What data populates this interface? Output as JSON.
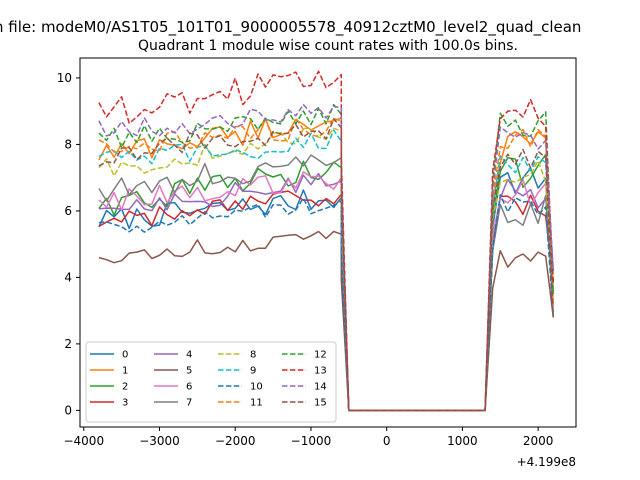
{
  "chart_data": {
    "type": "line",
    "title": "n file: modeM0/AS1T05_101T01_9000005578_40912cztM0_level2_quad_clean",
    "subtitle": "Quadrant 1 module wise count rates with 100.0s bins.",
    "xlabel": "",
    "ylabel": "",
    "x_offset_label": "+4.199e8",
    "xlim": [
      -4050,
      2500
    ],
    "ylim": [
      -0.5,
      10.6
    ],
    "x_ticks": [
      -4000,
      -3000,
      -2000,
      -1000,
      0,
      1000,
      2000
    ],
    "x_tick_labels": [
      "−4000",
      "−3000",
      "−2000",
      "−1000",
      "0",
      "1000",
      "2000"
    ],
    "y_ticks": [
      0,
      2,
      4,
      6,
      8,
      10
    ],
    "y_tick_labels": [
      "0",
      "2",
      "4",
      "6",
      "8",
      "10"
    ],
    "grid": false,
    "legend_position": "lower-left",
    "legend_columns": 4,
    "segment1": {
      "x_start": -3800,
      "step": 100,
      "count": 33
    },
    "gap": {
      "x": [
        -500,
        1300
      ],
      "y": 0
    },
    "segment2": {
      "x_start": 1400,
      "step": 100,
      "count": 9
    },
    "series": [
      {
        "name": "0",
        "color": "#1f77b4",
        "dashed": false,
        "base": 5.7,
        "amp": 0.35,
        "end": 6.4,
        "seg2": 6.9
      },
      {
        "name": "1",
        "color": "#ff7f0e",
        "dashed": false,
        "base": 7.7,
        "amp": 0.4,
        "end": 8.8,
        "seg2": 7.9
      },
      {
        "name": "2",
        "color": "#2ca02c",
        "dashed": false,
        "base": 6.2,
        "amp": 0.4,
        "end": 7.3,
        "seg2": 7.2
      },
      {
        "name": "3",
        "color": "#d62728",
        "dashed": false,
        "base": 5.6,
        "amp": 0.3,
        "end": 6.5,
        "seg2": 6.1
      },
      {
        "name": "4",
        "color": "#9467bd",
        "dashed": false,
        "base": 6.1,
        "amp": 0.35,
        "end": 6.9,
        "seg2": 6.5
      },
      {
        "name": "5",
        "color": "#8c564b",
        "dashed": false,
        "base": 4.6,
        "amp": 0.25,
        "end": 5.3,
        "seg2": 4.6
      },
      {
        "name": "6",
        "color": "#e377c2",
        "dashed": false,
        "base": 6.3,
        "amp": 0.35,
        "end": 7.0,
        "seg2": 6.6
      },
      {
        "name": "7",
        "color": "#7f7f7f",
        "dashed": false,
        "base": 6.6,
        "amp": 0.4,
        "end": 7.6,
        "seg2": 6.0
      },
      {
        "name": "8",
        "color": "#bcbd22",
        "dashed": true,
        "base": 7.2,
        "amp": 0.35,
        "end": 8.4,
        "seg2": 7.2
      },
      {
        "name": "9",
        "color": "#17becf",
        "dashed": true,
        "base": 7.5,
        "amp": 0.35,
        "end": 8.1,
        "seg2": 7.6
      },
      {
        "name": "10",
        "color": "#1f77b4",
        "dashed": true,
        "base": 5.5,
        "amp": 0.3,
        "end": 6.3,
        "seg2": 6.1
      },
      {
        "name": "11",
        "color": "#ff7f0e",
        "dashed": true,
        "base": 7.9,
        "amp": 0.4,
        "end": 8.7,
        "seg2": 8.0
      },
      {
        "name": "12",
        "color": "#2ca02c",
        "dashed": true,
        "base": 8.1,
        "amp": 0.35,
        "end": 8.9,
        "seg2": 8.6
      },
      {
        "name": "13",
        "color": "#d62728",
        "dashed": true,
        "base": 8.9,
        "amp": 0.45,
        "end": 10.1,
        "seg2": 9.0
      },
      {
        "name": "14",
        "color": "#9467bd",
        "dashed": true,
        "base": 8.4,
        "amp": 0.35,
        "end": 9.1,
        "seg2": 8.3
      },
      {
        "name": "15",
        "color": "#8c564b",
        "dashed": true,
        "base": 7.7,
        "amp": 0.35,
        "end": 8.5,
        "seg2": 7.6
      }
    ]
  }
}
